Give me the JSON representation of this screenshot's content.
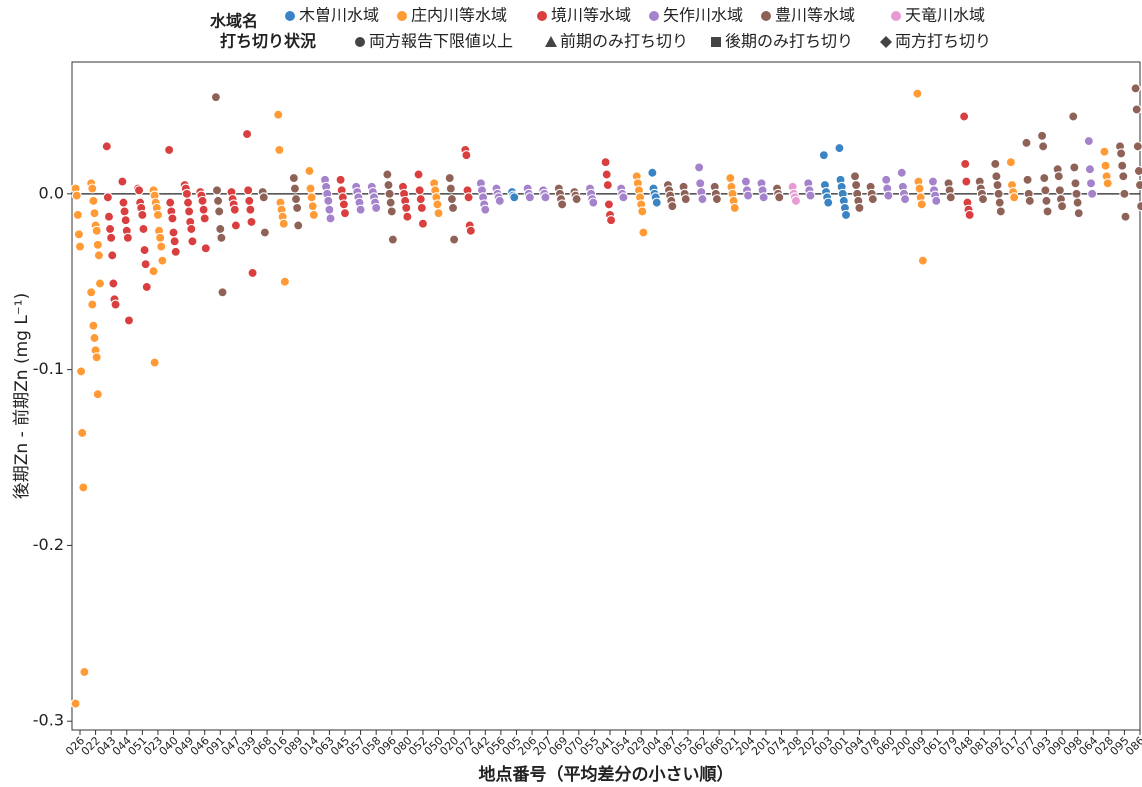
{
  "chart_data": {
    "type": "scatter",
    "xlabel": "地点番号（平均差分の小さい順）",
    "ylabel": "後期Zn - 前期Zn (mg L⁻¹)",
    "ylim": [
      -0.305,
      0.075
    ],
    "yticks": [
      0.0,
      -0.1,
      -0.2,
      -0.3
    ],
    "ytick_labels": [
      "0.0",
      "-0.1",
      "-0.2",
      "-0.3"
    ],
    "grid": false,
    "zero_line": true,
    "legend_position": "top-center",
    "legend": {
      "hue_title": "水域名",
      "hue_entries": [
        {
          "name": "木曽川水域",
          "color": "#3b84c4"
        },
        {
          "name": "庄内川等水域",
          "color": "#ff9a35"
        },
        {
          "name": "境川等水域",
          "color": "#d93f3f"
        },
        {
          "name": "矢作川水域",
          "color": "#a582cc"
        },
        {
          "name": "豊川等水域",
          "color": "#8f6258"
        },
        {
          "name": "天竜川水域",
          "color": "#e89ad3"
        }
      ],
      "style_title": "打ち切り状況",
      "style_entries": [
        {
          "name": "両方報告下限値以上",
          "marker": "circle"
        },
        {
          "name": "前期のみ打ち切り",
          "marker": "triangle"
        },
        {
          "name": "後期のみ打ち切り",
          "marker": "square"
        },
        {
          "name": "両方打ち切り",
          "marker": "diamond"
        }
      ]
    },
    "categories": [
      "026",
      "022",
      "043",
      "044",
      "051",
      "023",
      "040",
      "049",
      "046",
      "091",
      "047",
      "039",
      "068",
      "016",
      "089",
      "014",
      "063",
      "045",
      "057",
      "058",
      "096",
      "080",
      "052",
      "050",
      "020",
      "072",
      "042",
      "056",
      "005",
      "206",
      "207",
      "069",
      "070",
      "055",
      "041",
      "054",
      "029",
      "004",
      "087",
      "053",
      "062",
      "066",
      "021",
      "204",
      "201",
      "074",
      "208",
      "202",
      "003",
      "001",
      "094",
      "078",
      "060",
      "200",
      "009",
      "061",
      "079",
      "048",
      "081",
      "092",
      "017",
      "077",
      "093",
      "090",
      "098",
      "064",
      "028",
      "095",
      "086"
    ],
    "category_groups": [
      {
        "index": 0,
        "group": "庄内川等水域",
        "values": [
          0.003,
          -0.001,
          -0.012,
          -0.023,
          -0.03,
          -0.101,
          -0.136,
          -0.167,
          -0.272,
          -0.29
        ]
      },
      {
        "index": 1,
        "group": "庄内川等水域",
        "values": [
          0.006,
          0.003,
          -0.004,
          -0.011,
          -0.018,
          -0.021,
          -0.029,
          -0.035,
          -0.051,
          -0.056,
          -0.063,
          -0.075,
          -0.082,
          -0.089,
          -0.093,
          -0.114
        ]
      },
      {
        "index": 2,
        "group": "境川等水域",
        "values": [
          0.027,
          -0.002,
          -0.013,
          -0.02,
          -0.025,
          -0.035,
          -0.051,
          -0.06,
          -0.063
        ]
      },
      {
        "index": 3,
        "group": "境川等水域",
        "values": [
          0.007,
          -0.005,
          -0.01,
          -0.015,
          -0.021,
          -0.025,
          -0.072
        ]
      },
      {
        "index": 4,
        "group": "境川等水域",
        "values": [
          0.003,
          0.002,
          -0.005,
          -0.008,
          -0.012,
          -0.02,
          -0.032,
          -0.04,
          -0.053
        ]
      },
      {
        "index": 5,
        "group": "庄内川等水域",
        "values": [
          0.002,
          -0.001,
          -0.005,
          -0.008,
          -0.012,
          -0.021,
          -0.025,
          -0.03,
          -0.038,
          -0.044,
          -0.096
        ]
      },
      {
        "index": 6,
        "group": "境川等水域",
        "values": [
          0.025,
          -0.005,
          -0.01,
          -0.014,
          -0.022,
          -0.027,
          -0.033
        ]
      },
      {
        "index": 7,
        "group": "境川等水域",
        "values": [
          0.005,
          0.003,
          0.0,
          -0.005,
          -0.01,
          -0.016,
          -0.02,
          -0.027
        ]
      },
      {
        "index": 8,
        "group": "境川等水域",
        "values": [
          0.001,
          -0.001,
          -0.004,
          -0.009,
          -0.014,
          -0.031
        ]
      },
      {
        "index": 9,
        "group": "豊川等水域",
        "values": [
          0.055,
          0.002,
          -0.004,
          -0.01,
          -0.02,
          -0.025,
          -0.056
        ]
      },
      {
        "index": 10,
        "group": "境川等水域",
        "values": [
          0.001,
          -0.003,
          -0.006,
          -0.009,
          -0.018
        ]
      },
      {
        "index": 11,
        "group": "境川等水域",
        "values": [
          0.034,
          0.002,
          -0.004,
          -0.009,
          -0.016,
          -0.045
        ]
      },
      {
        "index": 12,
        "group": "豊川等水域",
        "values": [
          0.001,
          -0.002,
          -0.022
        ]
      },
      {
        "index": 13,
        "group": "庄内川等水域",
        "values": [
          0.045,
          0.025,
          -0.005,
          -0.009,
          -0.013,
          -0.017,
          -0.05
        ]
      },
      {
        "index": 14,
        "group": "豊川等水域",
        "values": [
          0.009,
          0.003,
          -0.003,
          -0.008,
          -0.018
        ]
      },
      {
        "index": 15,
        "group": "庄内川等水域",
        "values": [
          0.013,
          0.003,
          -0.002,
          -0.007,
          -0.012
        ]
      },
      {
        "index": 16,
        "group": "矢作川水域",
        "values": [
          0.008,
          0.004,
          0.0,
          -0.004,
          -0.009,
          -0.014
        ]
      },
      {
        "index": 17,
        "group": "境川等水域",
        "values": [
          0.008,
          0.002,
          -0.002,
          -0.006,
          -0.011
        ]
      },
      {
        "index": 18,
        "group": "矢作川水域",
        "values": [
          0.004,
          0.001,
          -0.002,
          -0.005,
          -0.009
        ]
      },
      {
        "index": 19,
        "group": "矢作川水域",
        "values": [
          0.004,
          0.001,
          -0.002,
          -0.005,
          -0.008
        ]
      },
      {
        "index": 20,
        "group": "豊川等水域",
        "values": [
          0.011,
          0.005,
          0.0,
          -0.005,
          -0.01,
          -0.026
        ]
      },
      {
        "index": 21,
        "group": "境川等水域",
        "values": [
          0.004,
          0.0,
          -0.004,
          -0.008,
          -0.013
        ]
      },
      {
        "index": 22,
        "group": "境川等水域",
        "values": [
          0.011,
          0.002,
          -0.003,
          -0.008,
          -0.017
        ]
      },
      {
        "index": 23,
        "group": "庄内川等水域",
        "values": [
          0.006,
          0.002,
          -0.002,
          -0.006,
          -0.011
        ]
      },
      {
        "index": 24,
        "group": "豊川等水域",
        "values": [
          0.009,
          0.003,
          -0.003,
          -0.008,
          -0.026
        ]
      },
      {
        "index": 25,
        "group": "境川等水域",
        "values": [
          0.025,
          0.022,
          0.002,
          -0.002,
          -0.018,
          -0.021
        ]
      },
      {
        "index": 26,
        "group": "矢作川水域",
        "values": [
          0.006,
          0.002,
          -0.002,
          -0.006,
          -0.009
        ]
      },
      {
        "index": 27,
        "group": "矢作川水域",
        "values": [
          0.003,
          0.0,
          -0.002,
          -0.004
        ]
      },
      {
        "index": 28,
        "group": "木曽川水域",
        "values": [
          0.001,
          -0.001,
          -0.002
        ]
      },
      {
        "index": 29,
        "group": "矢作川水域",
        "values": [
          0.003,
          0.0,
          -0.002
        ]
      },
      {
        "index": 30,
        "group": "矢作川水域",
        "values": [
          0.002,
          0.0,
          -0.002
        ]
      },
      {
        "index": 31,
        "group": "豊川等水域",
        "values": [
          0.003,
          0.0,
          -0.003,
          -0.006
        ]
      },
      {
        "index": 32,
        "group": "豊川等水域",
        "values": [
          0.001,
          -0.001,
          -0.003
        ]
      },
      {
        "index": 33,
        "group": "矢作川水域",
        "values": [
          0.003,
          0.0,
          -0.003,
          -0.005
        ]
      },
      {
        "index": 34,
        "group": "境川等水域",
        "values": [
          0.018,
          0.011,
          0.005,
          -0.006,
          -0.012,
          -0.015
        ]
      },
      {
        "index": 35,
        "group": "矢作川水域",
        "values": [
          0.003,
          0.0,
          -0.002
        ]
      },
      {
        "index": 36,
        "group": "庄内川等水域",
        "values": [
          0.01,
          0.006,
          0.002,
          -0.002,
          -0.006,
          -0.01,
          -0.022
        ]
      },
      {
        "index": 37,
        "group": "木曽川水域",
        "values": [
          0.012,
          0.003,
          0.0,
          -0.002,
          -0.005
        ]
      },
      {
        "index": 38,
        "group": "豊川等水域",
        "values": [
          0.005,
          0.002,
          -0.001,
          -0.004,
          -0.007
        ]
      },
      {
        "index": 39,
        "group": "豊川等水域",
        "values": [
          0.004,
          0.0,
          -0.003
        ]
      },
      {
        "index": 40,
        "group": "矢作川水域",
        "values": [
          0.015,
          0.006,
          0.001,
          -0.003
        ]
      },
      {
        "index": 41,
        "group": "豊川等水域",
        "values": [
          0.004,
          0.0,
          -0.003
        ]
      },
      {
        "index": 42,
        "group": "庄内川等水域",
        "values": [
          0.009,
          0.004,
          0.0,
          -0.004,
          -0.008
        ]
      },
      {
        "index": 43,
        "group": "矢作川水域",
        "values": [
          0.007,
          0.002,
          -0.001
        ]
      },
      {
        "index": 44,
        "group": "矢作川水域",
        "values": [
          0.006,
          0.002,
          -0.002
        ]
      },
      {
        "index": 45,
        "group": "豊川等水域",
        "values": [
          0.003,
          0.0,
          -0.002
        ]
      },
      {
        "index": 46,
        "group": "天竜川水域",
        "values": [
          0.004,
          0.0,
          -0.002,
          -0.004
        ]
      },
      {
        "index": 47,
        "group": "矢作川水域",
        "values": [
          0.006,
          0.002,
          -0.001
        ]
      },
      {
        "index": 48,
        "group": "木曽川水域",
        "values": [
          0.022,
          0.005,
          0.001,
          -0.002,
          -0.005
        ]
      },
      {
        "index": 49,
        "group": "木曽川水域",
        "values": [
          0.026,
          0.008,
          0.004,
          0.0,
          -0.004,
          -0.008,
          -0.012
        ]
      },
      {
        "index": 50,
        "group": "豊川等水域",
        "values": [
          0.01,
          0.005,
          0.0,
          -0.004,
          -0.008
        ]
      },
      {
        "index": 51,
        "group": "豊川等水域",
        "values": [
          0.004,
          0.0,
          -0.003
        ]
      },
      {
        "index": 52,
        "group": "矢作川水域",
        "values": [
          0.008,
          0.003,
          -0.001
        ]
      },
      {
        "index": 53,
        "group": "矢作川水域",
        "values": [
          0.012,
          0.004,
          0.0,
          -0.003
        ]
      },
      {
        "index": 54,
        "group": "庄内川等水域",
        "values": [
          0.057,
          0.007,
          0.003,
          -0.002,
          -0.006,
          -0.038
        ]
      },
      {
        "index": 55,
        "group": "矢作川水域",
        "values": [
          0.007,
          0.002,
          -0.001,
          -0.004
        ]
      },
      {
        "index": 56,
        "group": "豊川等水域",
        "values": [
          0.006,
          0.002,
          -0.002
        ]
      },
      {
        "index": 57,
        "group": "境川等水域",
        "values": [
          0.044,
          0.017,
          0.007,
          -0.005,
          -0.009,
          -0.012
        ]
      },
      {
        "index": 58,
        "group": "豊川等水域",
        "values": [
          0.007,
          0.003,
          0.0,
          -0.003
        ]
      },
      {
        "index": 59,
        "group": "豊川等水域",
        "values": [
          0.017,
          0.01,
          0.005,
          0.0,
          -0.005,
          -0.01
        ]
      },
      {
        "index": 60,
        "group": "庄内川等水域",
        "values": [
          0.018,
          0.005,
          0.001,
          -0.002
        ]
      },
      {
        "index": 61,
        "group": "豊川等水域",
        "values": [
          0.029,
          0.008,
          0.0,
          -0.004
        ]
      },
      {
        "index": 62,
        "group": "豊川等水域",
        "values": [
          0.033,
          0.027,
          0.009,
          0.002,
          -0.004,
          -0.01
        ]
      },
      {
        "index": 63,
        "group": "豊川等水域",
        "values": [
          0.014,
          0.01,
          0.002,
          -0.003,
          -0.007
        ]
      },
      {
        "index": 64,
        "group": "豊川等水域",
        "values": [
          0.044,
          0.015,
          0.006,
          0.0,
          -0.005,
          -0.011
        ]
      },
      {
        "index": 65,
        "group": "矢作川水域",
        "values": [
          0.03,
          0.014,
          0.006,
          0.0
        ]
      },
      {
        "index": 66,
        "group": "庄内川等水域",
        "values": [
          0.024,
          0.016,
          0.01,
          0.006
        ]
      },
      {
        "index": 67,
        "group": "豊川等水域",
        "values": [
          0.027,
          0.023,
          0.016,
          0.01,
          0.0,
          -0.013
        ]
      },
      {
        "index": 68,
        "group": "豊川等水域",
        "values": [
          0.06,
          0.048,
          0.027,
          0.013,
          0.005,
          -0.007
        ]
      }
    ]
  }
}
